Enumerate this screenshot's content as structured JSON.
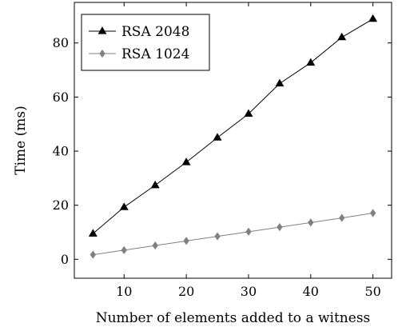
{
  "chart_data": {
    "type": "line",
    "xlabel": "Number of elements added to a witness",
    "ylabel": "Time (ms)",
    "xlim": [
      2,
      53
    ],
    "ylim": [
      -7,
      95
    ],
    "xticks": [
      10,
      20,
      30,
      40,
      50
    ],
    "yticks": [
      0,
      20,
      40,
      60,
      80
    ],
    "grid": false,
    "legend_position": "top-left",
    "x": [
      5,
      10,
      15,
      20,
      25,
      30,
      35,
      40,
      45,
      50
    ],
    "series": [
      {
        "name": "RSA 2048",
        "marker": "triangle",
        "color": "#000000",
        "values": [
          9.5,
          19.3,
          27.4,
          35.9,
          45.0,
          53.8,
          65.0,
          72.7,
          82.1,
          88.9
        ]
      },
      {
        "name": "RSA 1024",
        "marker": "diamond",
        "color": "#808080",
        "values": [
          1.7,
          3.4,
          5.1,
          6.8,
          8.5,
          10.2,
          11.9,
          13.6,
          15.3,
          17.1
        ]
      }
    ]
  }
}
